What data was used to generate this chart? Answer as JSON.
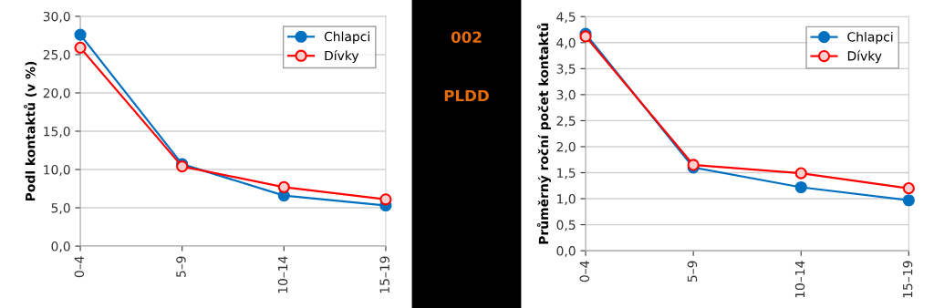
{
  "chart_data": [
    {
      "type": "line",
      "ylabel": "Podl kontaktů (v %)",
      "categories": [
        "0–4",
        "5–9",
        "10–14",
        "15–19"
      ],
      "series": [
        {
          "name": "Chlapci",
          "color": "#0070c0",
          "values": [
            27.6,
            10.7,
            6.6,
            5.3
          ]
        },
        {
          "name": "Dívky",
          "color": "#ff0000",
          "values": [
            25.9,
            10.4,
            7.7,
            6.1
          ]
        }
      ],
      "ylim": [
        0,
        30
      ],
      "yticks": [
        {
          "value": 0,
          "label": "0,0"
        },
        {
          "value": 5,
          "label": "5,0"
        },
        {
          "value": 10,
          "label": "10,0"
        },
        {
          "value": 15,
          "label": "15,0"
        },
        {
          "value": 20,
          "label": "20,0"
        },
        {
          "value": 25,
          "label": "25,0"
        },
        {
          "value": 30,
          "label": "30,0"
        }
      ],
      "grid": "y",
      "legend": "top right",
      "marker": "circle"
    },
    {
      "type": "other",
      "annotations": [
        "002",
        "PLDD"
      ]
    },
    {
      "type": "line",
      "ylabel": "Průměrný roční počet kontaktů",
      "categories": [
        "0–4",
        "5–9",
        "10–14",
        "15–19"
      ],
      "series": [
        {
          "name": "Chlapci",
          "color": "#0070c0",
          "values": [
            4.17,
            1.6,
            1.22,
            0.97
          ]
        },
        {
          "name": "Dívky",
          "color": "#ff0000",
          "values": [
            4.12,
            1.65,
            1.49,
            1.2
          ]
        }
      ],
      "ylim": [
        0,
        4.5
      ],
      "yticks": [
        {
          "value": 0,
          "label": "0,0"
        },
        {
          "value": 0.5,
          "label": "0,5"
        },
        {
          "value": 1,
          "label": "1,0"
        },
        {
          "value": 1.5,
          "label": "1,5"
        },
        {
          "value": 2,
          "label": "2,0"
        },
        {
          "value": 2.5,
          "label": "2,5"
        },
        {
          "value": 3,
          "label": "3,0"
        },
        {
          "value": 3.5,
          "label": "3,5"
        },
        {
          "value": 4,
          "label": "4,0"
        },
        {
          "value": 4.5,
          "label": "4,5"
        }
      ],
      "grid": "y",
      "legend": "top right",
      "marker": "circle"
    }
  ]
}
